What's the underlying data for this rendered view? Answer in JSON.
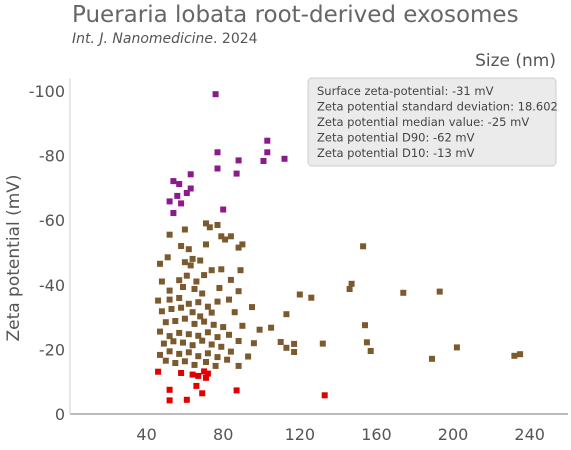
{
  "chart_data": {
    "type": "scatter",
    "title": "Pueraria lobata root-derived exosomes",
    "subtitle_journal": "Int. J. Nanomedicine",
    "subtitle_year": ". 2024",
    "xlabel": "Size (nm)",
    "ylabel": "Zeta potential (mV)",
    "xlim": [
      0,
      260
    ],
    "ylim": [
      0,
      -104
    ],
    "y_reversed": true,
    "grid": false,
    "x_ticks": [
      40,
      80,
      120,
      160,
      200,
      240
    ],
    "x_tick_labels": [
      "40",
      "80",
      "120",
      "160",
      "200",
      "240"
    ],
    "y_ticks": [
      0,
      -20,
      -40,
      -60,
      -80,
      -100
    ],
    "y_tick_labels": [
      "0",
      "-20",
      "-40",
      "-60",
      "-80",
      "-100"
    ],
    "annotation_lines": [
      "Surface zeta-potential: -31 mV",
      "Zeta potential standard deviation: 18.602",
      "Zeta potential median value: -25 mV",
      "Zeta potential D90: -62 mV",
      "Zeta potential D10: -13 mV"
    ],
    "annotation_position": "top-right",
    "series": [
      {
        "color": "#8b1a8b",
        "points": [
          [
            76,
            -99
          ],
          [
            103,
            -84.6
          ],
          [
            103,
            -81
          ],
          [
            77,
            -81
          ],
          [
            112,
            -79
          ],
          [
            88,
            -78.5
          ],
          [
            101,
            -78.3
          ],
          [
            77,
            -76
          ],
          [
            54,
            -72.1
          ],
          [
            57,
            -71.2
          ],
          [
            63,
            -74.2
          ],
          [
            87,
            -74.4
          ],
          [
            61,
            -68.4
          ],
          [
            63,
            -69.8
          ],
          [
            56,
            -67.5
          ],
          [
            58,
            -65.2
          ],
          [
            54,
            -62.2
          ],
          [
            80,
            -63.3
          ],
          [
            52,
            -65.8
          ]
        ]
      },
      {
        "color": "#7a5a2e",
        "points": [
          [
            71,
            -59
          ],
          [
            73,
            -57.8
          ],
          [
            52,
            -55.5
          ],
          [
            84,
            -55
          ],
          [
            77,
            -58.5
          ],
          [
            79,
            -55
          ],
          [
            81,
            -54
          ],
          [
            71,
            -52.5
          ],
          [
            58,
            -52
          ],
          [
            90,
            -52.5
          ],
          [
            88,
            -51.5
          ],
          [
            153,
            -51.9
          ],
          [
            62,
            -51
          ],
          [
            51,
            -48.5
          ],
          [
            64,
            -48
          ],
          [
            68,
            -47.5
          ],
          [
            60,
            -47
          ],
          [
            47,
            -46.5
          ],
          [
            63,
            -46
          ],
          [
            74,
            -44.5
          ],
          [
            79,
            -44.8
          ],
          [
            70,
            -43
          ],
          [
            89,
            -44.5
          ],
          [
            48,
            -41
          ],
          [
            57,
            -41.4
          ],
          [
            61,
            -42.8
          ],
          [
            66,
            -41
          ],
          [
            84,
            -41.5
          ],
          [
            147,
            -40.3
          ],
          [
            52,
            -38.2
          ],
          [
            59,
            -39.3
          ],
          [
            65,
            -38.7
          ],
          [
            69,
            -37.3
          ],
          [
            78,
            -39
          ],
          [
            88,
            -38
          ],
          [
            146,
            -38.7
          ],
          [
            174,
            -37.5
          ],
          [
            193,
            -37.9
          ],
          [
            120,
            -37
          ],
          [
            126,
            -36
          ],
          [
            46,
            -35.1
          ],
          [
            52,
            -35.4
          ],
          [
            57,
            -35.9
          ],
          [
            62,
            -34.1
          ],
          [
            67,
            -34.6
          ],
          [
            72,
            -33.2
          ],
          [
            77,
            -34.8
          ],
          [
            83,
            -35.4
          ],
          [
            48,
            -31.8
          ],
          [
            53,
            -32.5
          ],
          [
            58,
            -32.9
          ],
          [
            64,
            -31.5
          ],
          [
            68,
            -30.2
          ],
          [
            74,
            -31.4
          ],
          [
            86,
            -31.5
          ],
          [
            113,
            -30.9
          ],
          [
            50,
            -28.4
          ],
          [
            55,
            -28.8
          ],
          [
            60,
            -29.5
          ],
          [
            65,
            -27.9
          ],
          [
            70,
            -28.6
          ],
          [
            75,
            -27.6
          ],
          [
            80,
            -26.9
          ],
          [
            90,
            -27.3
          ],
          [
            99,
            -26.1
          ],
          [
            154,
            -27.5
          ],
          [
            47,
            -25.5
          ],
          [
            52,
            -24.1
          ],
          [
            57,
            -25.1
          ],
          [
            62,
            -24.7
          ],
          [
            67,
            -24.2
          ],
          [
            72,
            -25.3
          ],
          [
            77,
            -23.8
          ],
          [
            83,
            -24.5
          ],
          [
            49,
            -21.8
          ],
          [
            54,
            -22.5
          ],
          [
            59,
            -22.1
          ],
          [
            64,
            -21.3
          ],
          [
            69,
            -22.7
          ],
          [
            74,
            -21.5
          ],
          [
            79,
            -20.8
          ],
          [
            88,
            -22.6
          ],
          [
            96,
            -21.9
          ],
          [
            110,
            -22.3
          ],
          [
            117,
            -21.7
          ],
          [
            113,
            -20.5
          ],
          [
            132,
            -21.8
          ],
          [
            155,
            -22.2
          ],
          [
            47,
            -18.3
          ],
          [
            52,
            -19.4
          ],
          [
            57,
            -18.6
          ],
          [
            62,
            -19.1
          ],
          [
            67,
            -17.9
          ],
          [
            72,
            -18.8
          ],
          [
            77,
            -17.6
          ],
          [
            84,
            -19.3
          ],
          [
            93,
            -17.8
          ],
          [
            117,
            -19.2
          ],
          [
            157,
            -19.5
          ],
          [
            202,
            -20.6
          ],
          [
            50,
            -16.5
          ],
          [
            55,
            -15.8
          ],
          [
            60,
            -16.3
          ],
          [
            65,
            -15.2
          ],
          [
            71,
            -16.1
          ],
          [
            76,
            -14.9
          ],
          [
            82,
            -16.8
          ],
          [
            88,
            -14.9
          ],
          [
            189,
            -17.1
          ],
          [
            232,
            -18
          ],
          [
            235,
            -18.5
          ],
          [
            105,
            -26.7
          ],
          [
            95,
            -33.1
          ],
          [
            60,
            -57.1
          ]
        ]
      },
      {
        "color": "#e00000",
        "points": [
          [
            46,
            -13.1
          ],
          [
            58,
            -12.7
          ],
          [
            64,
            -12.2
          ],
          [
            67,
            -11.8
          ],
          [
            70,
            -13.2
          ],
          [
            72,
            -12.5
          ],
          [
            71,
            -11.2
          ],
          [
            66,
            -8.7
          ],
          [
            52,
            -7.5
          ],
          [
            87,
            -7.3
          ],
          [
            69,
            -6.4
          ],
          [
            133,
            -5.8
          ],
          [
            61,
            -4.4
          ],
          [
            52,
            -4.2
          ]
        ]
      }
    ]
  }
}
